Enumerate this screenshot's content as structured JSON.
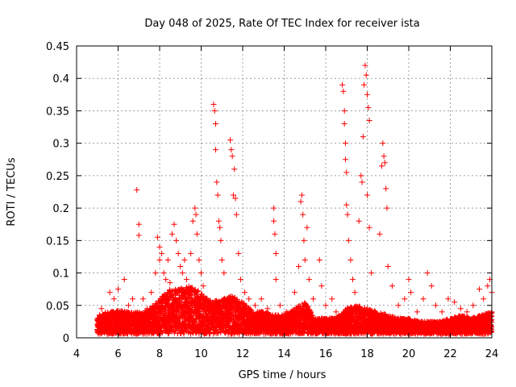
{
  "chart_data": {
    "type": "scatter",
    "title": "Day 048 of 2025, Rate Of TEC Index for receiver ista",
    "xlabel": "GPS time / hours",
    "ylabel": "ROTI / TECUs",
    "xlim": [
      4,
      24
    ],
    "ylim": [
      0,
      0.45
    ],
    "xticks": [
      "4",
      "6",
      "8",
      "10",
      "12",
      "14",
      "16",
      "18",
      "20",
      "22",
      "24"
    ],
    "yticks": [
      "0",
      "0.05",
      "0.1",
      "0.15",
      "0.2",
      "0.25",
      "0.3",
      "0.35",
      "0.4",
      "0.45"
    ],
    "grid": true,
    "marker": "+",
    "color": "#ff0000",
    "series": [
      {
        "name": "ROTI",
        "points": [
          [
            5.0,
            0.02
          ],
          [
            5.1,
            0.035
          ],
          [
            5.2,
            0.045
          ],
          [
            5.4,
            0.03
          ],
          [
            5.6,
            0.07
          ],
          [
            5.8,
            0.06
          ],
          [
            6.0,
            0.075
          ],
          [
            6.2,
            0.04
          ],
          [
            6.3,
            0.09
          ],
          [
            6.5,
            0.05
          ],
          [
            6.7,
            0.06
          ],
          [
            6.9,
            0.228
          ],
          [
            7.0,
            0.175
          ],
          [
            7.0,
            0.158
          ],
          [
            7.2,
            0.06
          ],
          [
            7.4,
            0.045
          ],
          [
            7.6,
            0.07
          ],
          [
            7.8,
            0.1
          ],
          [
            7.9,
            0.155
          ],
          [
            8.0,
            0.14
          ],
          [
            8.0,
            0.12
          ],
          [
            8.1,
            0.13
          ],
          [
            8.2,
            0.1
          ],
          [
            8.3,
            0.09
          ],
          [
            8.4,
            0.12
          ],
          [
            8.5,
            0.085
          ],
          [
            8.6,
            0.16
          ],
          [
            8.7,
            0.175
          ],
          [
            8.8,
            0.15
          ],
          [
            8.9,
            0.13
          ],
          [
            9.0,
            0.11
          ],
          [
            9.1,
            0.1
          ],
          [
            9.2,
            0.12
          ],
          [
            9.3,
            0.09
          ],
          [
            9.5,
            0.13
          ],
          [
            9.6,
            0.18
          ],
          [
            9.7,
            0.2
          ],
          [
            9.75,
            0.19
          ],
          [
            9.8,
            0.16
          ],
          [
            9.9,
            0.12
          ],
          [
            10.0,
            0.1
          ],
          [
            10.1,
            0.08
          ],
          [
            10.6,
            0.36
          ],
          [
            10.65,
            0.35
          ],
          [
            10.7,
            0.33
          ],
          [
            10.7,
            0.29
          ],
          [
            10.75,
            0.24
          ],
          [
            10.8,
            0.22
          ],
          [
            10.85,
            0.18
          ],
          [
            10.9,
            0.17
          ],
          [
            10.95,
            0.15
          ],
          [
            11.0,
            0.12
          ],
          [
            11.1,
            0.1
          ],
          [
            11.4,
            0.305
          ],
          [
            11.45,
            0.29
          ],
          [
            11.5,
            0.28
          ],
          [
            11.6,
            0.26
          ],
          [
            11.55,
            0.22
          ],
          [
            11.65,
            0.215
          ],
          [
            11.7,
            0.19
          ],
          [
            11.8,
            0.13
          ],
          [
            11.9,
            0.09
          ],
          [
            12.1,
            0.07
          ],
          [
            12.3,
            0.06
          ],
          [
            12.6,
            0.05
          ],
          [
            12.9,
            0.06
          ],
          [
            13.2,
            0.045
          ],
          [
            13.5,
            0.2
          ],
          [
            13.5,
            0.18
          ],
          [
            13.55,
            0.16
          ],
          [
            13.6,
            0.13
          ],
          [
            13.6,
            0.09
          ],
          [
            13.8,
            0.05
          ],
          [
            14.1,
            0.04
          ],
          [
            14.5,
            0.07
          ],
          [
            14.7,
            0.11
          ],
          [
            14.8,
            0.21
          ],
          [
            14.85,
            0.22
          ],
          [
            14.9,
            0.19
          ],
          [
            14.95,
            0.15
          ],
          [
            15.0,
            0.12
          ],
          [
            15.1,
            0.17
          ],
          [
            15.2,
            0.09
          ],
          [
            15.4,
            0.06
          ],
          [
            15.7,
            0.12
          ],
          [
            15.8,
            0.08
          ],
          [
            16.0,
            0.05
          ],
          [
            16.3,
            0.06
          ],
          [
            16.5,
            0.04
          ],
          [
            16.8,
            0.39
          ],
          [
            16.85,
            0.38
          ],
          [
            16.9,
            0.35
          ],
          [
            16.9,
            0.33
          ],
          [
            16.95,
            0.3
          ],
          [
            16.95,
            0.275
          ],
          [
            17.0,
            0.255
          ],
          [
            17.0,
            0.205
          ],
          [
            17.05,
            0.19
          ],
          [
            17.1,
            0.15
          ],
          [
            17.2,
            0.12
          ],
          [
            17.3,
            0.09
          ],
          [
            17.4,
            0.07
          ],
          [
            17.6,
            0.18
          ],
          [
            17.7,
            0.25
          ],
          [
            17.75,
            0.24
          ],
          [
            17.8,
            0.31
          ],
          [
            17.85,
            0.39
          ],
          [
            17.9,
            0.42
          ],
          [
            17.95,
            0.405
          ],
          [
            18.0,
            0.375
          ],
          [
            18.05,
            0.355
          ],
          [
            18.1,
            0.335
          ],
          [
            18.0,
            0.22
          ],
          [
            18.1,
            0.17
          ],
          [
            18.2,
            0.1
          ],
          [
            18.6,
            0.16
          ],
          [
            18.7,
            0.265
          ],
          [
            18.75,
            0.3
          ],
          [
            18.8,
            0.28
          ],
          [
            18.85,
            0.27
          ],
          [
            18.9,
            0.23
          ],
          [
            18.95,
            0.2
          ],
          [
            19.0,
            0.11
          ],
          [
            19.2,
            0.08
          ],
          [
            19.5,
            0.05
          ],
          [
            19.8,
            0.06
          ],
          [
            20.0,
            0.09
          ],
          [
            20.1,
            0.07
          ],
          [
            20.4,
            0.04
          ],
          [
            20.7,
            0.06
          ],
          [
            20.9,
            0.1
          ],
          [
            21.1,
            0.08
          ],
          [
            21.3,
            0.05
          ],
          [
            21.6,
            0.04
          ],
          [
            21.9,
            0.06
          ],
          [
            22.2,
            0.055
          ],
          [
            22.5,
            0.045
          ],
          [
            22.8,
            0.04
          ],
          [
            23.1,
            0.05
          ],
          [
            23.4,
            0.075
          ],
          [
            23.6,
            0.06
          ],
          [
            23.8,
            0.08
          ],
          [
            23.9,
            0.09
          ],
          [
            24.0,
            0.07
          ]
        ],
        "envelope": [
          [
            5.0,
            0.035
          ],
          [
            5.5,
            0.04
          ],
          [
            6.0,
            0.042
          ],
          [
            6.5,
            0.04
          ],
          [
            7.0,
            0.04
          ],
          [
            7.5,
            0.045
          ],
          [
            8.0,
            0.06
          ],
          [
            8.5,
            0.075
          ],
          [
            9.0,
            0.08
          ],
          [
            9.5,
            0.08
          ],
          [
            10.0,
            0.07
          ],
          [
            10.5,
            0.055
          ],
          [
            11.0,
            0.06
          ],
          [
            11.5,
            0.065
          ],
          [
            12.0,
            0.055
          ],
          [
            12.5,
            0.04
          ],
          [
            13.0,
            0.04
          ],
          [
            13.5,
            0.035
          ],
          [
            14.0,
            0.035
          ],
          [
            14.5,
            0.045
          ],
          [
            15.0,
            0.055
          ],
          [
            15.5,
            0.03
          ],
          [
            16.0,
            0.03
          ],
          [
            16.5,
            0.03
          ],
          [
            17.0,
            0.045
          ],
          [
            17.5,
            0.05
          ],
          [
            18.0,
            0.045
          ],
          [
            18.5,
            0.04
          ],
          [
            19.0,
            0.035
          ],
          [
            19.5,
            0.03
          ],
          [
            20.0,
            0.03
          ],
          [
            20.5,
            0.025
          ],
          [
            21.0,
            0.025
          ],
          [
            21.5,
            0.025
          ],
          [
            22.0,
            0.03
          ],
          [
            22.5,
            0.035
          ],
          [
            23.0,
            0.03
          ],
          [
            23.5,
            0.035
          ],
          [
            24.0,
            0.04
          ]
        ]
      }
    ]
  }
}
